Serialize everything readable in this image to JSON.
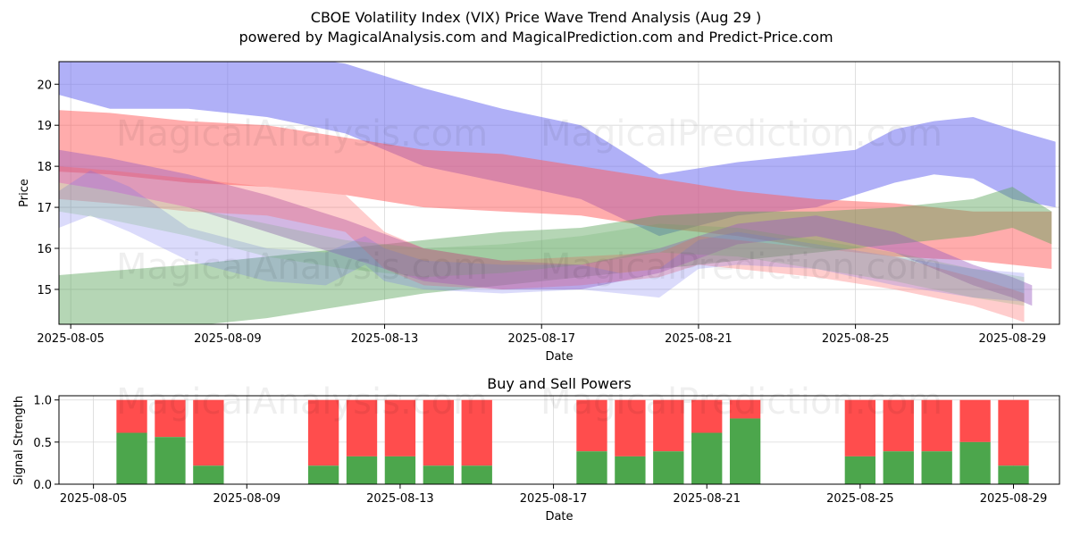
{
  "title_line1": "CBOE Volatility Index (VIX) Price Wave Trend Analysis (Aug 29 )",
  "title_line2": "powered by MagicalAnalysis.com and MagicalPrediction.com and Predict-Price.com",
  "watermarks": [
    "MagicalAnalysis.com",
    "MagicalPrediction.com"
  ],
  "colors": {
    "blue": "#7070f0",
    "red": "#ff5a5a",
    "green": "#5aa55a",
    "purple": "#9b5fc0",
    "buy": "#4ca64c",
    "sell": "#ff4d4d"
  },
  "chart_data": [
    {
      "type": "area",
      "title": "",
      "xlabel": "Date",
      "ylabel": "Price",
      "xlim": [
        -0.3,
        25.2
      ],
      "ylim": [
        14.15,
        20.55
      ],
      "x_origin_date": "2025-08-05",
      "x_ticks": [
        {
          "x": 0,
          "label": "2025-08-05"
        },
        {
          "x": 4,
          "label": "2025-08-09"
        },
        {
          "x": 8,
          "label": "2025-08-13"
        },
        {
          "x": 12,
          "label": "2025-08-17"
        },
        {
          "x": 16,
          "label": "2025-08-21"
        },
        {
          "x": 20,
          "label": "2025-08-25"
        },
        {
          "x": 24,
          "label": "2025-08-29"
        }
      ],
      "y_ticks": [
        15,
        16,
        17,
        18,
        19,
        20
      ],
      "bands": [
        {
          "name": "blue-wave-1",
          "color": "blue",
          "opacity": 0.55,
          "x": [
            -0.9,
            1,
            3,
            5,
            7,
            9,
            11,
            13,
            15,
            17,
            19,
            20,
            21,
            22,
            23,
            24,
            25.1
          ],
          "upper": [
            20.7,
            20.8,
            20.9,
            20.8,
            20.5,
            19.9,
            19.4,
            19.0,
            17.8,
            18.1,
            18.3,
            18.4,
            18.9,
            19.1,
            19.2,
            18.9,
            18.6
          ],
          "lower": [
            19.9,
            19.4,
            19.4,
            19.2,
            18.8,
            18.0,
            17.6,
            17.2,
            16.3,
            16.8,
            17.0,
            17.3,
            17.6,
            17.8,
            17.7,
            17.2,
            17.0
          ]
        },
        {
          "name": "red-wave-1",
          "color": "red",
          "opacity": 0.5,
          "x": [
            -0.9,
            1,
            3,
            5,
            7,
            9,
            11,
            13,
            15,
            17,
            19,
            21,
            23,
            25
          ],
          "upper": [
            19.4,
            19.3,
            19.1,
            19.0,
            18.7,
            18.4,
            18.3,
            18.0,
            17.7,
            17.4,
            17.2,
            17.1,
            16.9,
            16.9
          ],
          "lower": [
            17.9,
            17.8,
            17.6,
            17.5,
            17.3,
            17.0,
            16.9,
            16.8,
            16.5,
            16.3,
            16.0,
            15.8,
            15.7,
            15.5
          ]
        },
        {
          "name": "green-wave-1",
          "color": "green",
          "opacity": 0.45,
          "x": [
            -0.9,
            1,
            3,
            5,
            7,
            9,
            11,
            13,
            15,
            17,
            19,
            21,
            23,
            24,
            25
          ],
          "upper": [
            15.3,
            15.45,
            15.6,
            15.8,
            16.0,
            16.2,
            16.4,
            16.5,
            16.8,
            16.9,
            16.9,
            17.0,
            17.2,
            17.5,
            16.9
          ],
          "lower": [
            13.8,
            13.9,
            14.1,
            14.3,
            14.6,
            14.9,
            15.1,
            15.3,
            15.5,
            15.7,
            15.9,
            16.1,
            16.3,
            16.5,
            16.1
          ]
        },
        {
          "name": "purple-wave-1",
          "color": "purple",
          "opacity": 0.45,
          "x": [
            -0.3,
            1,
            3,
            5,
            7,
            9,
            11,
            13,
            15,
            17,
            19,
            21,
            23,
            24,
            24.5
          ],
          "upper": [
            18.4,
            18.2,
            17.8,
            17.3,
            16.7,
            16.0,
            15.7,
            15.6,
            16.0,
            16.6,
            16.8,
            16.4,
            15.6,
            15.3,
            15.1
          ],
          "lower": [
            17.6,
            17.4,
            17.0,
            16.4,
            15.8,
            15.2,
            15.0,
            15.0,
            15.4,
            16.1,
            16.3,
            15.9,
            15.1,
            14.8,
            14.6
          ]
        },
        {
          "name": "pink-wave-1",
          "color": "red",
          "opacity": 0.3,
          "x": [
            -0.3,
            1,
            3,
            5,
            7,
            8,
            9,
            11,
            13,
            15,
            16,
            17,
            19,
            21,
            23,
            24,
            24.3
          ],
          "upper": [
            18.0,
            17.9,
            17.7,
            17.5,
            17.3,
            16.4,
            16.0,
            15.7,
            15.8,
            15.9,
            16.3,
            16.2,
            16.0,
            15.8,
            15.3,
            15.0,
            14.9
          ],
          "lower": [
            17.2,
            17.1,
            16.9,
            16.8,
            16.4,
            15.5,
            15.1,
            15.0,
            15.1,
            15.3,
            15.6,
            15.5,
            15.3,
            15.0,
            14.6,
            14.3,
            14.2
          ]
        },
        {
          "name": "lavender-wave-1",
          "color": "blue",
          "opacity": 0.25,
          "x": [
            -0.3,
            0.5,
            1.5,
            3,
            5,
            6.5,
            7.5,
            8,
            9,
            11,
            13,
            14,
            15,
            16,
            17,
            19,
            21,
            23,
            24.3
          ],
          "upper": [
            17.4,
            17.9,
            17.5,
            16.5,
            16.0,
            15.9,
            16.3,
            16.0,
            15.7,
            15.6,
            15.6,
            15.4,
            15.5,
            16.2,
            16.4,
            16.1,
            15.8,
            15.5,
            15.4
          ],
          "lower": [
            16.5,
            16.8,
            16.4,
            15.7,
            15.2,
            15.1,
            15.6,
            15.2,
            15.0,
            14.9,
            15.0,
            14.9,
            14.8,
            15.5,
            15.6,
            15.5,
            15.1,
            14.8,
            14.7
          ]
        },
        {
          "name": "olive-wave-1",
          "color": "green",
          "opacity": 0.2,
          "x": [
            -0.3,
            1,
            3,
            5,
            7,
            9,
            11,
            13,
            15,
            17,
            19,
            21,
            23,
            24.3
          ],
          "upper": [
            17.6,
            17.4,
            17.0,
            16.6,
            16.2,
            16.0,
            16.1,
            16.3,
            16.6,
            16.5,
            16.2,
            15.9,
            15.5,
            15.3
          ],
          "lower": [
            16.9,
            16.7,
            16.3,
            15.8,
            15.5,
            15.3,
            15.4,
            15.6,
            15.9,
            15.8,
            15.5,
            15.2,
            14.8,
            14.6
          ]
        }
      ]
    },
    {
      "type": "bar",
      "title": "Buy and Sell Powers",
      "xlabel": "Date",
      "ylabel": "Signal Strength",
      "xlim": [
        -0.9,
        25.2
      ],
      "ylim": [
        0,
        1.05
      ],
      "y_ticks": [
        "0.0",
        "0.5",
        "1.0"
      ],
      "x_ticks": [
        {
          "x": 0,
          "label": "2025-08-05"
        },
        {
          "x": 4,
          "label": "2025-08-09"
        },
        {
          "x": 8,
          "label": "2025-08-13"
        },
        {
          "x": 12,
          "label": "2025-08-17"
        },
        {
          "x": 16,
          "label": "2025-08-21"
        },
        {
          "x": 20,
          "label": "2025-08-25"
        },
        {
          "x": 24,
          "label": "2025-08-29"
        }
      ],
      "bars": [
        {
          "x": 1,
          "buy": 0.61
        },
        {
          "x": 2,
          "buy": 0.56
        },
        {
          "x": 3,
          "buy": 0.22
        },
        {
          "x": 6,
          "buy": 0.22
        },
        {
          "x": 7,
          "buy": 0.33
        },
        {
          "x": 8,
          "buy": 0.33
        },
        {
          "x": 9,
          "buy": 0.22
        },
        {
          "x": 10,
          "buy": 0.22
        },
        {
          "x": 13,
          "buy": 0.39
        },
        {
          "x": 14,
          "buy": 0.33
        },
        {
          "x": 15,
          "buy": 0.39
        },
        {
          "x": 16,
          "buy": 0.61
        },
        {
          "x": 17,
          "buy": 0.78
        },
        {
          "x": 20,
          "buy": 0.33
        },
        {
          "x": 21,
          "buy": 0.39
        },
        {
          "x": 22,
          "buy": 0.39
        },
        {
          "x": 23,
          "buy": 0.5
        },
        {
          "x": 24,
          "buy": 0.22
        }
      ]
    }
  ]
}
